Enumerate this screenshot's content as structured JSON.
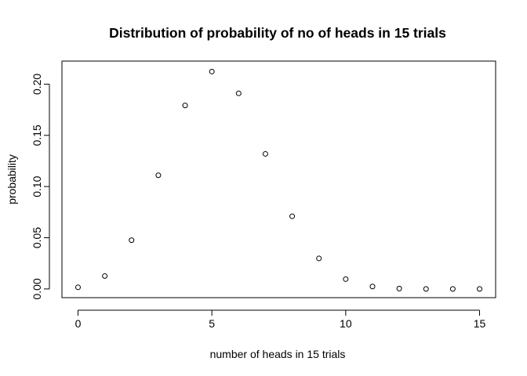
{
  "chart_data": {
    "type": "scatter",
    "title": "Distribution of probability of no of heads in 15 trials",
    "xlabel": "number of heads in 15 trials",
    "ylabel": "probability",
    "xlim": [
      -0.6,
      15.6
    ],
    "ylim": [
      -0.0085,
      0.2225
    ],
    "x_ticks": [
      0,
      5,
      10,
      15
    ],
    "y_ticks": [
      0.0,
      0.05,
      0.1,
      0.15,
      0.2
    ],
    "x_tick_labels": [
      "0",
      "5",
      "10",
      "15"
    ],
    "y_tick_labels": [
      "0.00",
      "0.05",
      "0.10",
      "0.15",
      "0.20"
    ],
    "grid": false,
    "marker": "open-circle",
    "series": [
      {
        "x": [
          0,
          1,
          2,
          3,
          4,
          5,
          6,
          7,
          8,
          9,
          10,
          11,
          12,
          13,
          14,
          15
        ],
        "y": [
          0.0016,
          0.0126,
          0.0476,
          0.111,
          0.1792,
          0.2123,
          0.191,
          0.1319,
          0.071,
          0.0298,
          0.0096,
          0.0024,
          0.0004,
          0.0,
          0.0,
          0.0
        ]
      }
    ]
  }
}
